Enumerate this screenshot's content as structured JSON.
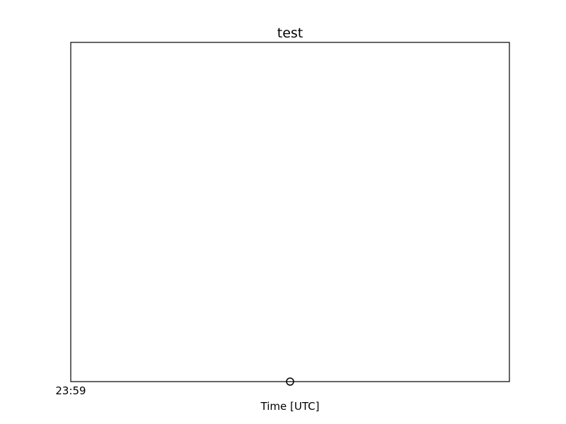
{
  "chart_data": {
    "type": "scatter",
    "title": "test",
    "xlabel": "Time [UTC]",
    "ylabel": "",
    "x_ticks": [
      "23:59"
    ],
    "points": [
      {
        "x": 0.5,
        "y": 0
      }
    ],
    "xlim": [
      0,
      1
    ],
    "ylim": [
      0,
      1
    ],
    "grid": false,
    "marker": "open-circle",
    "colors": {
      "axes": "#000000",
      "marker_edge": "#000000",
      "marker_face": "none",
      "background": "#ffffff"
    }
  }
}
